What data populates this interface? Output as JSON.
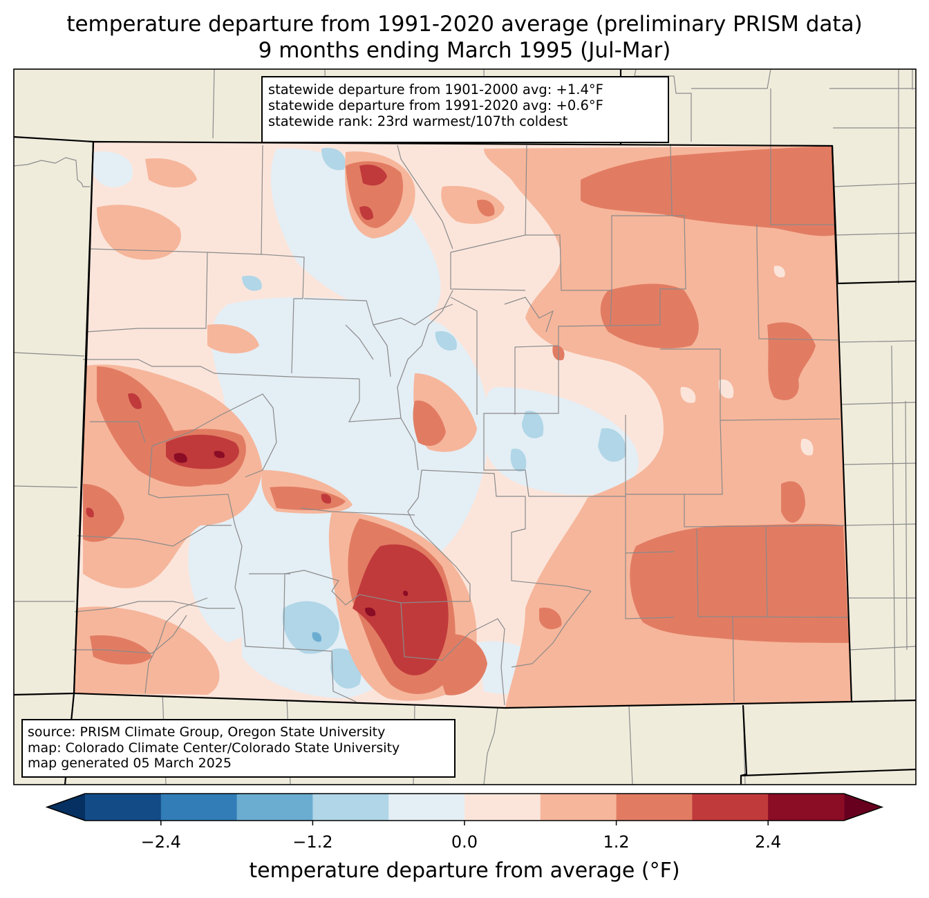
{
  "title": {
    "line1": "temperature departure from 1991-2020 average (preliminary PRISM data)",
    "line2": "9 months ending March 1995 (Jul-Mar)"
  },
  "stats": {
    "line1": "statewide departure from 1901-2000 avg: +1.4°F",
    "line2": "statewide departure from 1991-2020 avg: +0.6°F",
    "line3": "statewide rank: 23rd warmest/107th coldest"
  },
  "source": {
    "line1": "source: PRISM Climate Group, Oregon State University",
    "line2": "map: Colorado Climate Center/Colorado State University",
    "line3": "map generated 05 March 2025"
  },
  "colorbar": {
    "label": "temperature departure from average (°F)",
    "ticks": [
      "−2.4",
      "−1.2",
      "0.0",
      "1.2",
      "2.4"
    ],
    "bins": [
      {
        "from": -3.0,
        "to": -2.4,
        "color": "#134b87"
      },
      {
        "from": -2.4,
        "to": -1.8,
        "color": "#327db7"
      },
      {
        "from": -1.8,
        "to": -1.2,
        "color": "#6bacd1"
      },
      {
        "from": -1.2,
        "to": -0.6,
        "color": "#b0d6e7"
      },
      {
        "from": -0.6,
        "to": 0.0,
        "color": "#e4eef5"
      },
      {
        "from": 0.0,
        "to": 0.6,
        "color": "#fbe5db"
      },
      {
        "from": 0.6,
        "to": 1.2,
        "color": "#f6b69b"
      },
      {
        "from": 1.2,
        "to": 1.8,
        "color": "#e17c63"
      },
      {
        "from": 1.8,
        "to": 2.4,
        "color": "#c13a3b"
      },
      {
        "from": 2.4,
        "to": 3.0,
        "color": "#8a0c25"
      }
    ],
    "under_color": "#053061",
    "over_color": "#67001f"
  },
  "colors": {
    "land": "#efecdc",
    "county_line": "#8a8a8a",
    "state_line": "#000000"
  }
}
